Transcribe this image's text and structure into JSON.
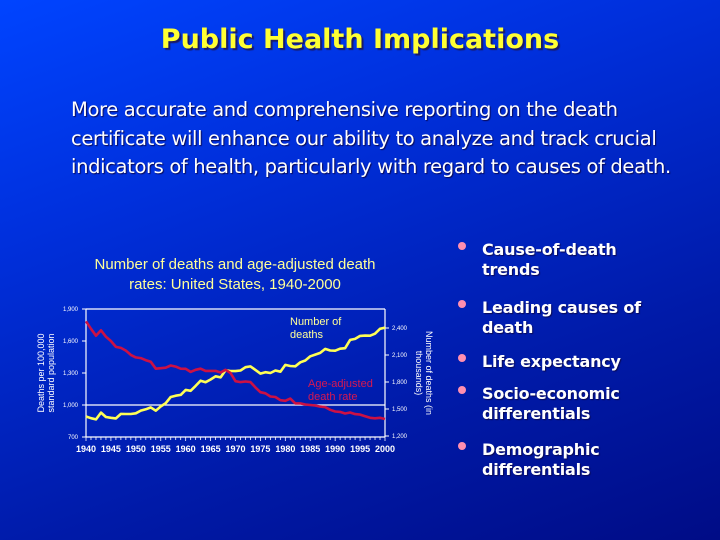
{
  "slide": {
    "title": "Public Health Implications",
    "intro": "More accurate and comprehensive reporting on the death certificate will enhance our ability to analyze and track crucial indicators of health, particularly with regard to causes of death.",
    "bullets": [
      {
        "icon": "bullet-dot-icon",
        "label": "Cause-of-death\ntrends"
      },
      {
        "icon": "bullet-dot-icon",
        "label": "Leading causes of\ndeath"
      },
      {
        "icon": "bullet-dot-icon",
        "label": "Life expectancy"
      },
      {
        "icon": "bullet-dot-icon",
        "label": "Socio-economic\ndifferentials"
      },
      {
        "icon": "bullet-dot-icon",
        "label": "Demographic\ndifferentials"
      }
    ]
  },
  "colors": {
    "title": "#ffff33",
    "bullet_dot": "#ff8fb0",
    "deaths_line": "#ffff55",
    "rate_line": "#cc1144",
    "axis": "#ffffff",
    "chart_title": "#ffff99"
  },
  "chart_data": {
    "type": "line",
    "title": "Number of deaths and age-adjusted death rates: United States, 1940-2000",
    "title_lines": [
      "Number of deaths and age-adjusted death",
      "rates: United States, 1940-2000"
    ],
    "xlabel": "",
    "ylabel": "Deaths per 100,000 standard population",
    "ylabel_lines": [
      "Deaths per 100,000",
      "standard population"
    ],
    "y2label": "Number of deaths (in thousands)",
    "y2label_lines": [
      "Number of deaths (in",
      "thousands)"
    ],
    "xlim": [
      1940,
      2000
    ],
    "ylim": [
      700,
      1900
    ],
    "y2lim": [
      1200,
      2600
    ],
    "x_ticks": [
      "1940",
      "1945",
      "1950",
      "1955",
      "1960",
      "1965",
      "1970",
      "1975",
      "1980",
      "1985",
      "1990",
      "1995",
      "2000"
    ],
    "y_ticks": [
      "700",
      "1,000",
      "1,300",
      "1,600",
      "1,900"
    ],
    "y2_ticks": [
      "1,200",
      "1,500",
      "1,800",
      "2,100",
      "2,400"
    ],
    "gridlines": [
      1000,
      1900
    ],
    "annotations": [
      {
        "text_lines": [
          "Number of",
          "deaths"
        ],
        "series": "Number of deaths"
      },
      {
        "text_lines": [
          "Age-adjusted",
          "death  rate"
        ],
        "series": "Age-adjusted death rate"
      }
    ],
    "x": [
      1940,
      1941,
      1942,
      1943,
      1944,
      1945,
      1946,
      1947,
      1948,
      1949,
      1950,
      1951,
      1952,
      1953,
      1954,
      1955,
      1956,
      1957,
      1958,
      1959,
      1960,
      1961,
      1962,
      1963,
      1964,
      1965,
      1966,
      1967,
      1968,
      1969,
      1970,
      1971,
      1972,
      1973,
      1974,
      1975,
      1976,
      1977,
      1978,
      1979,
      1980,
      1981,
      1982,
      1983,
      1984,
      1985,
      1986,
      1987,
      1988,
      1989,
      1990,
      1991,
      1992,
      1993,
      1994,
      1995,
      1996,
      1997,
      1998,
      1999,
      2000
    ],
    "series": [
      {
        "name": "Age-adjusted death rate",
        "axis": "left",
        "values": [
          1785,
          1714,
          1650,
          1700,
          1640,
          1600,
          1545,
          1535,
          1510,
          1470,
          1446,
          1440,
          1420,
          1405,
          1340,
          1345,
          1350,
          1370,
          1360,
          1340,
          1339,
          1310,
          1330,
          1340,
          1320,
          1320,
          1320,
          1305,
          1330,
          1300,
          1223,
          1215,
          1220,
          1215,
          1165,
          1120,
          1110,
          1080,
          1075,
          1045,
          1039,
          1060,
          1015,
          1015,
          1005,
          1000,
          995,
          985,
          980,
          955,
          939,
          935,
          920,
          930,
          915,
          910,
          895,
          880,
          875,
          880,
          869
        ]
      },
      {
        "name": "Number of deaths",
        "axis": "right",
        "values": [
          1417,
          1398,
          1385,
          1460,
          1411,
          1402,
          1396,
          1445,
          1444,
          1444,
          1452,
          1482,
          1497,
          1518,
          1481,
          1529,
          1564,
          1633,
          1648,
          1657,
          1712,
          1702,
          1757,
          1814,
          1798,
          1828,
          1863,
          1851,
          1930,
          1922,
          1921,
          1928,
          1964,
          1973,
          1934,
          1893,
          1909,
          1900,
          1928,
          1914,
          1990,
          1978,
          1975,
          2019,
          2039,
          2086,
          2105,
          2123,
          2168,
          2150,
          2148,
          2170,
          2176,
          2268,
          2279,
          2312,
          2315,
          2314,
          2337,
          2391,
          2403
        ]
      }
    ]
  }
}
